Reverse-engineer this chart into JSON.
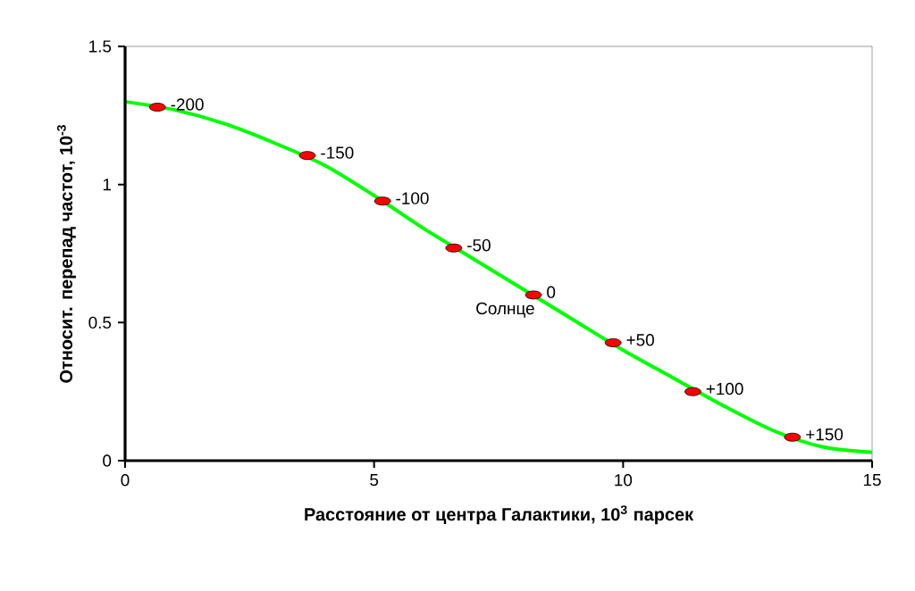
{
  "chart_data": {
    "type": "line",
    "xlabel": "Расстояние от центра Галактики, 10$^{3}$ парсек",
    "ylabel": "Относит. перепад частот, 10$^{-3}$",
    "xlim": [
      0,
      15
    ],
    "ylim": [
      0,
      1.5
    ],
    "xticks": [
      0,
      5,
      10,
      15
    ],
    "yticks": [
      0,
      0.5,
      1,
      1.5
    ],
    "grid": false,
    "series": [
      {
        "type": "line",
        "color": "#00ff00",
        "x": [
          0,
          1,
          2,
          3,
          4,
          5,
          6,
          7,
          8,
          9,
          10,
          11,
          12,
          13,
          14,
          15
        ],
        "values": [
          1.3,
          1.27,
          1.22,
          1.15,
          1.07,
          0.96,
          0.84,
          0.73,
          0.62,
          0.51,
          0.4,
          0.3,
          0.2,
          0.11,
          0.05,
          0.03
        ]
      },
      {
        "type": "scatter",
        "color": "#ff0000",
        "x": [
          0.65,
          3.66,
          5.17,
          6.6,
          8.2,
          9.8,
          11.4,
          13.4
        ],
        "values": [
          1.28,
          1.105,
          0.94,
          0.77,
          0.6,
          0.427,
          0.25,
          0.085
        ]
      }
    ],
    "annotations": [
      {
        "text": "-200",
        "x": 0.65,
        "y": 1.28
      },
      {
        "text": "-150",
        "x": 3.66,
        "y": 1.105
      },
      {
        "text": "-100",
        "x": 5.17,
        "y": 0.94
      },
      {
        "text": "-50",
        "x": 6.6,
        "y": 0.77
      },
      {
        "text": "0",
        "x": 8.2,
        "y": 0.6
      },
      {
        "text": "Солнце",
        "x": 8.2,
        "y": 0.6
      },
      {
        "text": "+50",
        "x": 9.8,
        "y": 0.427
      },
      {
        "text": "+100",
        "x": 11.4,
        "y": 0.25
      },
      {
        "text": "+150",
        "x": 13.4,
        "y": 0.085
      }
    ]
  }
}
